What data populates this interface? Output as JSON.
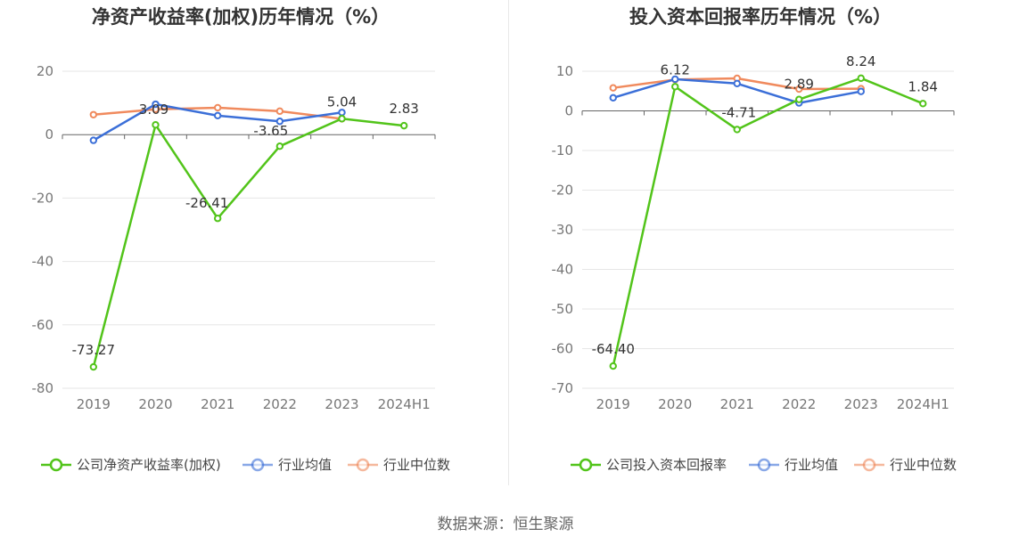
{
  "colors": {
    "company": "#52c41a",
    "industry_avg": "#3b6fd8",
    "industry_median": "#f08a5d",
    "axis": "#666666",
    "grid": "#e6e6e6",
    "title": "#333333"
  },
  "source_text": "数据来源：恒生聚源",
  "chart_data": [
    {
      "type": "line",
      "title": "净资产收益率(加权)历年情况（%）",
      "categories": [
        "2019",
        "2020",
        "2021",
        "2022",
        "2023",
        "2024H1"
      ],
      "ylim": [
        -80,
        20
      ],
      "yticks": [
        20,
        0,
        -20,
        -40,
        -60,
        -80
      ],
      "series": [
        {
          "name": "公司净资产收益率(加权)",
          "key": "company",
          "values": [
            -73.27,
            3.09,
            -26.41,
            -3.65,
            5.04,
            2.83
          ],
          "labels": [
            "-73.27",
            "3.09",
            "-26.41",
            "-3.65",
            "5.04",
            "2.83"
          ]
        },
        {
          "name": "行业均值",
          "key": "industry_avg",
          "values": [
            -1.8,
            9.6,
            6.0,
            4.2,
            7.0,
            null
          ]
        },
        {
          "name": "行业中位数",
          "key": "industry_median",
          "values": [
            6.3,
            8.0,
            8.5,
            7.4,
            5.0,
            null
          ]
        }
      ]
    },
    {
      "type": "line",
      "title": "投入资本回报率历年情况（%）",
      "categories": [
        "2019",
        "2020",
        "2021",
        "2022",
        "2023",
        "2024H1"
      ],
      "ylim": [
        -70,
        10
      ],
      "yticks": [
        10,
        0,
        -10,
        -20,
        -30,
        -40,
        -50,
        -60,
        -70
      ],
      "series": [
        {
          "name": "公司投入资本回报率",
          "key": "company",
          "values": [
            -64.4,
            6.12,
            -4.71,
            2.89,
            8.24,
            1.84
          ],
          "labels": [
            "-64.40",
            "6.12",
            "-4.71",
            "2.89",
            "8.24",
            "1.84"
          ]
        },
        {
          "name": "行业均值",
          "key": "industry_avg",
          "values": [
            3.3,
            8.0,
            6.9,
            2.0,
            4.9,
            null
          ]
        },
        {
          "name": "行业中位数",
          "key": "industry_median",
          "values": [
            5.8,
            7.9,
            8.2,
            5.5,
            5.6,
            null
          ]
        }
      ]
    }
  ]
}
